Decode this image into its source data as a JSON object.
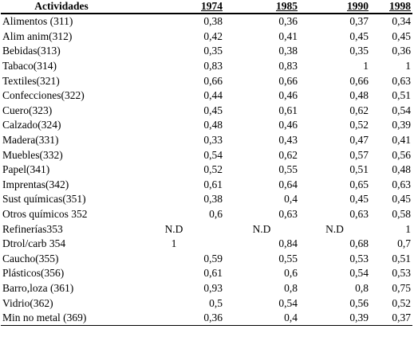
{
  "table": {
    "headers": [
      "Actividades",
      "1974",
      "1985",
      "1990",
      "1998"
    ],
    "rows": [
      [
        "Alimentos (311)",
        "0,38",
        "0,36",
        "0,37",
        "0,34"
      ],
      [
        "Alim anim(312)",
        "0,42",
        "0,41",
        "0,45",
        "0,45"
      ],
      [
        "Bebidas(313)",
        "0,35",
        "0,38",
        "0,35",
        "0,36"
      ],
      [
        "Tabaco(314)",
        "0,83",
        "0,83",
        "1",
        "1"
      ],
      [
        "Textiles(321)",
        "0,66",
        "0,66",
        "0,66",
        "0,63"
      ],
      [
        "Confecciones(322)",
        "0,44",
        "0,46",
        "0,48",
        "0,51"
      ],
      [
        "Cuero(323)",
        "0,45",
        "0,61",
        "0,62",
        "0,54"
      ],
      [
        "Calzado(324)",
        "0,48",
        "0,46",
        "0,52",
        "0,39"
      ],
      [
        "Madera(331)",
        "0,33",
        "0,43",
        "0,47",
        "0,41"
      ],
      [
        "Muebles(332)",
        "0,54",
        "0,62",
        "0,57",
        "0,56"
      ],
      [
        "Papel(341)",
        "0,52",
        "0,55",
        "0,51",
        "0,48"
      ],
      [
        "Imprentas(342)",
        "0,61",
        "0,64",
        "0,65",
        "0,63"
      ],
      [
        "Sust químicas(351)",
        "0,38",
        "0,4",
        "0,45",
        "0,45"
      ],
      [
        "Otros químicos 352",
        "0,6",
        "0,63",
        "0,63",
        "0,58"
      ],
      [
        "Refinerías353",
        "N.D",
        "N.D",
        "N.D",
        "1"
      ],
      [
        "Dtrol/carb 354",
        "1",
        "0,84",
        "0,68",
        "0,7"
      ],
      [
        "Caucho(355)",
        "0,59",
        "0,55",
        "0,53",
        "0,51"
      ],
      [
        "Plásticos(356)",
        "0,61",
        "0,6",
        "0,54",
        "0,53"
      ],
      [
        "Barro,loza (361)",
        "0,93",
        "0,8",
        "0,8",
        "0,75"
      ],
      [
        "Vidrio(362)",
        "0,5",
        "0,54",
        "0,56",
        "0,52"
      ],
      [
        "Min no metal (369)",
        "0,36",
        "0,4",
        "0,39",
        "0,37"
      ]
    ]
  }
}
